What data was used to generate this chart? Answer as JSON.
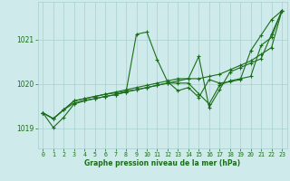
{
  "background_color": "#ceeaea",
  "grid_color": "#a8cece",
  "line_color": "#1a6e1a",
  "text_color": "#1a6e1a",
  "xlabel": "Graphe pression niveau de la mer (hPa)",
  "xlim": [
    -0.5,
    23.5
  ],
  "ylim": [
    1018.55,
    1021.85
  ],
  "yticks": [
    1019,
    1020,
    1021
  ],
  "xticks": [
    0,
    1,
    2,
    3,
    4,
    5,
    6,
    7,
    8,
    9,
    10,
    11,
    12,
    13,
    14,
    15,
    16,
    17,
    18,
    19,
    20,
    21,
    22,
    23
  ],
  "series": [
    [
      1019.35,
      1019.02,
      1019.25,
      1019.55,
      1019.62,
      1019.67,
      1019.72,
      1019.76,
      1019.82,
      1021.12,
      1021.17,
      1020.55,
      1020.05,
      1019.85,
      1019.92,
      1019.7,
      1020.1,
      1020.02,
      1020.05,
      1020.1,
      1020.75,
      1021.1,
      1021.45,
      1021.65
    ],
    [
      1019.35,
      1019.22,
      1019.42,
      1019.57,
      1019.63,
      1019.67,
      1019.72,
      1019.76,
      1019.82,
      1019.87,
      1019.92,
      1019.97,
      1020.02,
      1020.07,
      1020.12,
      1020.12,
      1020.17,
      1020.22,
      1020.32,
      1020.42,
      1020.52,
      1020.67,
      1020.82,
      1021.65
    ],
    [
      1019.35,
      1019.22,
      1019.42,
      1019.62,
      1019.67,
      1019.72,
      1019.77,
      1019.8,
      1019.84,
      1019.87,
      1019.92,
      1019.97,
      1020.02,
      1020.02,
      1020.02,
      1019.78,
      1019.55,
      1019.97,
      1020.07,
      1020.12,
      1020.17,
      1020.87,
      1021.05,
      1021.65
    ],
    [
      1019.35,
      1019.22,
      1019.42,
      1019.62,
      1019.67,
      1019.72,
      1019.77,
      1019.82,
      1019.87,
      1019.92,
      1019.97,
      1020.02,
      1020.07,
      1020.12,
      1020.12,
      1020.62,
      1019.47,
      1019.87,
      1020.27,
      1020.37,
      1020.47,
      1020.57,
      1021.12,
      1021.65
    ]
  ]
}
